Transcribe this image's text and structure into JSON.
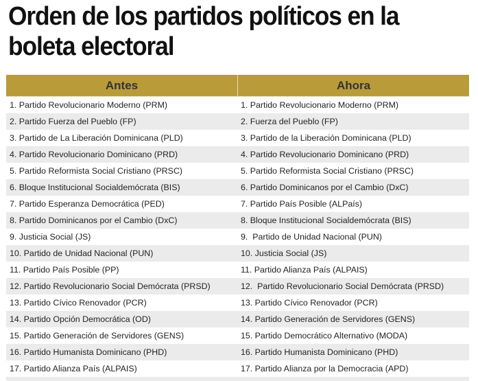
{
  "title": "Orden de los partidos políticos en la boleta electoral",
  "table": {
    "headers": {
      "before": "Antes",
      "now": "Ahora"
    },
    "colors": {
      "header_bg": "#b99b3a",
      "header_text": "#333333",
      "alt_row_bg": "#ebebeb"
    },
    "rows": [
      {
        "before": "1. Partido Revolucionario Moderno (PRM)",
        "now": "1. Partido Revolucionario Moderno (PRM)"
      },
      {
        "before": "2. Partido Fuerza del Pueblo (FP)",
        "now": "2. Fuerza del Pueblo (FP)"
      },
      {
        "before": "3. Partido de La Liberación Dominicana (PLD)",
        "now": "3. Partido de la Liberación Dominicana (PLD)"
      },
      {
        "before": "4. Partido Revolucionario Dominicano (PRD)",
        "now": "4. Partido Revolucionario Dominicano (PRD)"
      },
      {
        "before": "5. Partido Reformista Social Cristiano (PRSC)",
        "now": "5. Partido Reformista Social Cristiano (PRSC)"
      },
      {
        "before": "6. Bloque Institucional Socialdemócrata (BIS)",
        "now": "6. Partido Dominicanos por el Cambio (DxC)"
      },
      {
        "before": "7. Partido Esperanza Democrática (PED)",
        "now": "7. Partido País Posible (ALPaís)"
      },
      {
        "before": "8. Partido Dominicanos por el Cambio (DxC)",
        "now": "8. Bloque Institucional Socialdemócrata (BIS)"
      },
      {
        "before": "9. Justicia Social (JS)",
        "now": "9.  Partido de Unidad Nacional (PUN)"
      },
      {
        "before": "10. Partido de Unidad Nacional (PUN)",
        "now": "10. Justicia Social (JS)"
      },
      {
        "before": "11. Partido País Posible (PP)",
        "now": "11. Partido Alianza País (ALPAIS)"
      },
      {
        "before": "12. Partido Revolucionario Social Demócrata (PRSD)",
        "now": "12.  Partido Revolucionario Social Demócrata (PRSD)"
      },
      {
        "before": "13. Partido Cívico Renovador (PCR)",
        "now": "13. Partido Cívico Renovador (PCR)"
      },
      {
        "before": "14. Partido Opción Democrática (OD)",
        "now": "14. Partido Generación de Servidores (GENS)"
      },
      {
        "before": "15. Partido Generación de Servidores (GENS)",
        "now": "15. Partido Democrático Alternativo (MODA)"
      },
      {
        "before": "16. Partido Humanista Dominicano (PHD)",
        "now": "16. Partido Humanista Dominicano (PHD)"
      },
      {
        "before": "17. Partido Alianza País (ALPAIS)",
        "now": "17. Partido Alianza por la Democracia (APD)"
      }
    ]
  }
}
